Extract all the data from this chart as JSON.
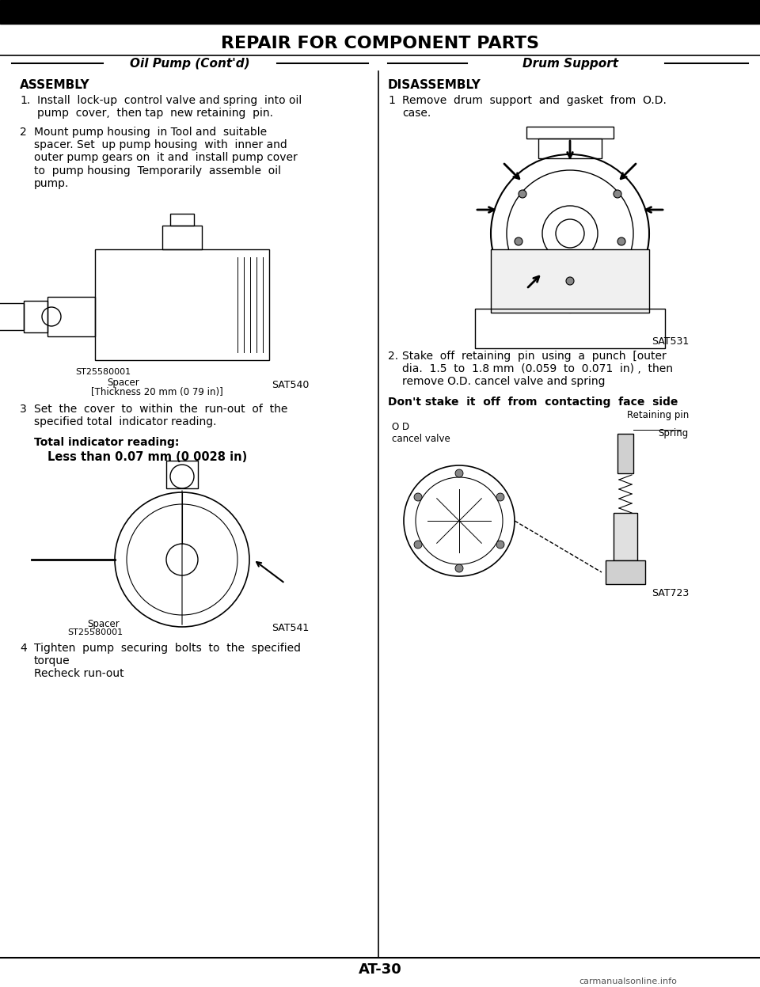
{
  "page_title": "REPAIR FOR COMPONENT PARTS",
  "left_section_title": "Oil Pump (Cont'd)",
  "right_section_title": "Drum Support",
  "bg_color": "#ffffff",
  "text_color": "#000000",
  "page_number": "AT-30",
  "left_content": {
    "heading": "ASSEMBLY",
    "items": [
      {
        "num": "1.",
        "text": "Install  lock-up  control valve and spring  into oil\npump  cover,  then tap  new retaining  pin."
      },
      {
        "num": "2",
        "text": "Mount pump housing  in Tool and  suitable\nspacer. Set  up pump housing  with  inner and\nouter pump gears on  it and  install pump cover\nto  pump housing  Temporarily  assemble  oil\npump."
      }
    ],
    "fig1_caption_line1": "ST25580001",
    "fig1_caption_line2": "Spacer",
    "fig1_caption_line3": "[Thickness 20 mm (0 79 in)]",
    "fig1_label": "SAT540",
    "item3": {
      "num": "3",
      "text": "Set  the  cover  to  within  the  run-out  of  the\nspecified total  indicator reading."
    },
    "indicator_heading": "Total indicator reading:",
    "indicator_value": "Less than 0.07 mm (0 0028 in)",
    "fig2_caption_line1": "Spacer",
    "fig2_caption_line2": "ST25580001",
    "fig2_label": "SAT541",
    "item4": {
      "num": "4",
      "text": "Tighten  pump  securing  bolts  to  the  specified\ntorque\nRecheck run-out"
    }
  },
  "right_content": {
    "heading": "DISASSEMBLY",
    "items": [
      {
        "num": "1",
        "text": "Remove  drum  support  and  gasket  from  O.D.\ncase."
      }
    ],
    "fig1_label": "SAT531",
    "item2_heading": "2.",
    "item2_text": "Stake  off  retaining  pin  using  a  punch  [outer\ndia.  1.5  to  1.8 mm  (0.059  to  0.071  in) ,  then\nremove O.D. cancel valve and spring",
    "item2_bold": "Don't stake  it  off  from  contacting  face  side",
    "fig2_labels": {
      "retaining_pin": "Retaining pin",
      "spring": "Spring",
      "od_cancel_valve": "O D\ncancel valve"
    },
    "fig2_label": "SAT723"
  }
}
